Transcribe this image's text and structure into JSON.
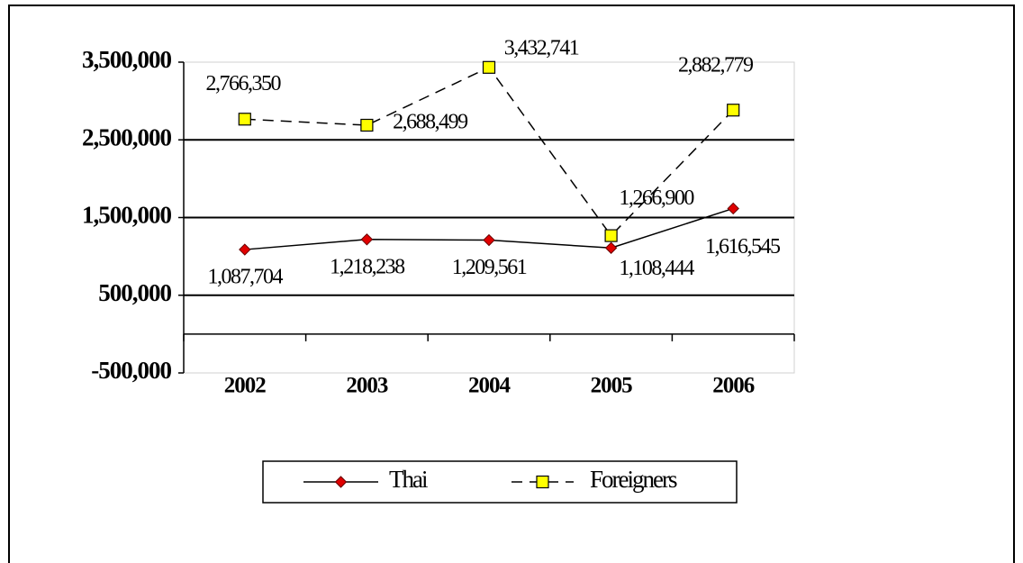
{
  "chart_data": {
    "type": "line",
    "categories": [
      "2002",
      "2003",
      "2004",
      "2005",
      "2006"
    ],
    "series": [
      {
        "name": "Thai",
        "color": "#e00000",
        "values": [
          1087704,
          1218238,
          1209561,
          1108444,
          1616545
        ],
        "value_labels": [
          "1,087,704",
          "1,218,238",
          "1,209,561",
          "1,108,444",
          "1,616,545"
        ]
      },
      {
        "name": "Foreigners",
        "color": "#ffff00",
        "values": [
          2766350,
          2688499,
          3432741,
          1266900,
          2882779
        ],
        "value_labels": [
          "2,766,350",
          "2,688,499",
          "3,432,741",
          "1,266,900",
          "2,882,779"
        ]
      }
    ],
    "ylim": [
      -500000,
      3500000
    ],
    "yticks": [
      {
        "value": -500000,
        "label": "-500,000"
      },
      {
        "value": 500000,
        "label": "500,000"
      },
      {
        "value": 1500000,
        "label": "1,500,000"
      },
      {
        "value": 2500000,
        "label": "2,500,000"
      },
      {
        "value": 3500000,
        "label": "3,500,000"
      }
    ],
    "grid": true,
    "legend": "bottom"
  }
}
